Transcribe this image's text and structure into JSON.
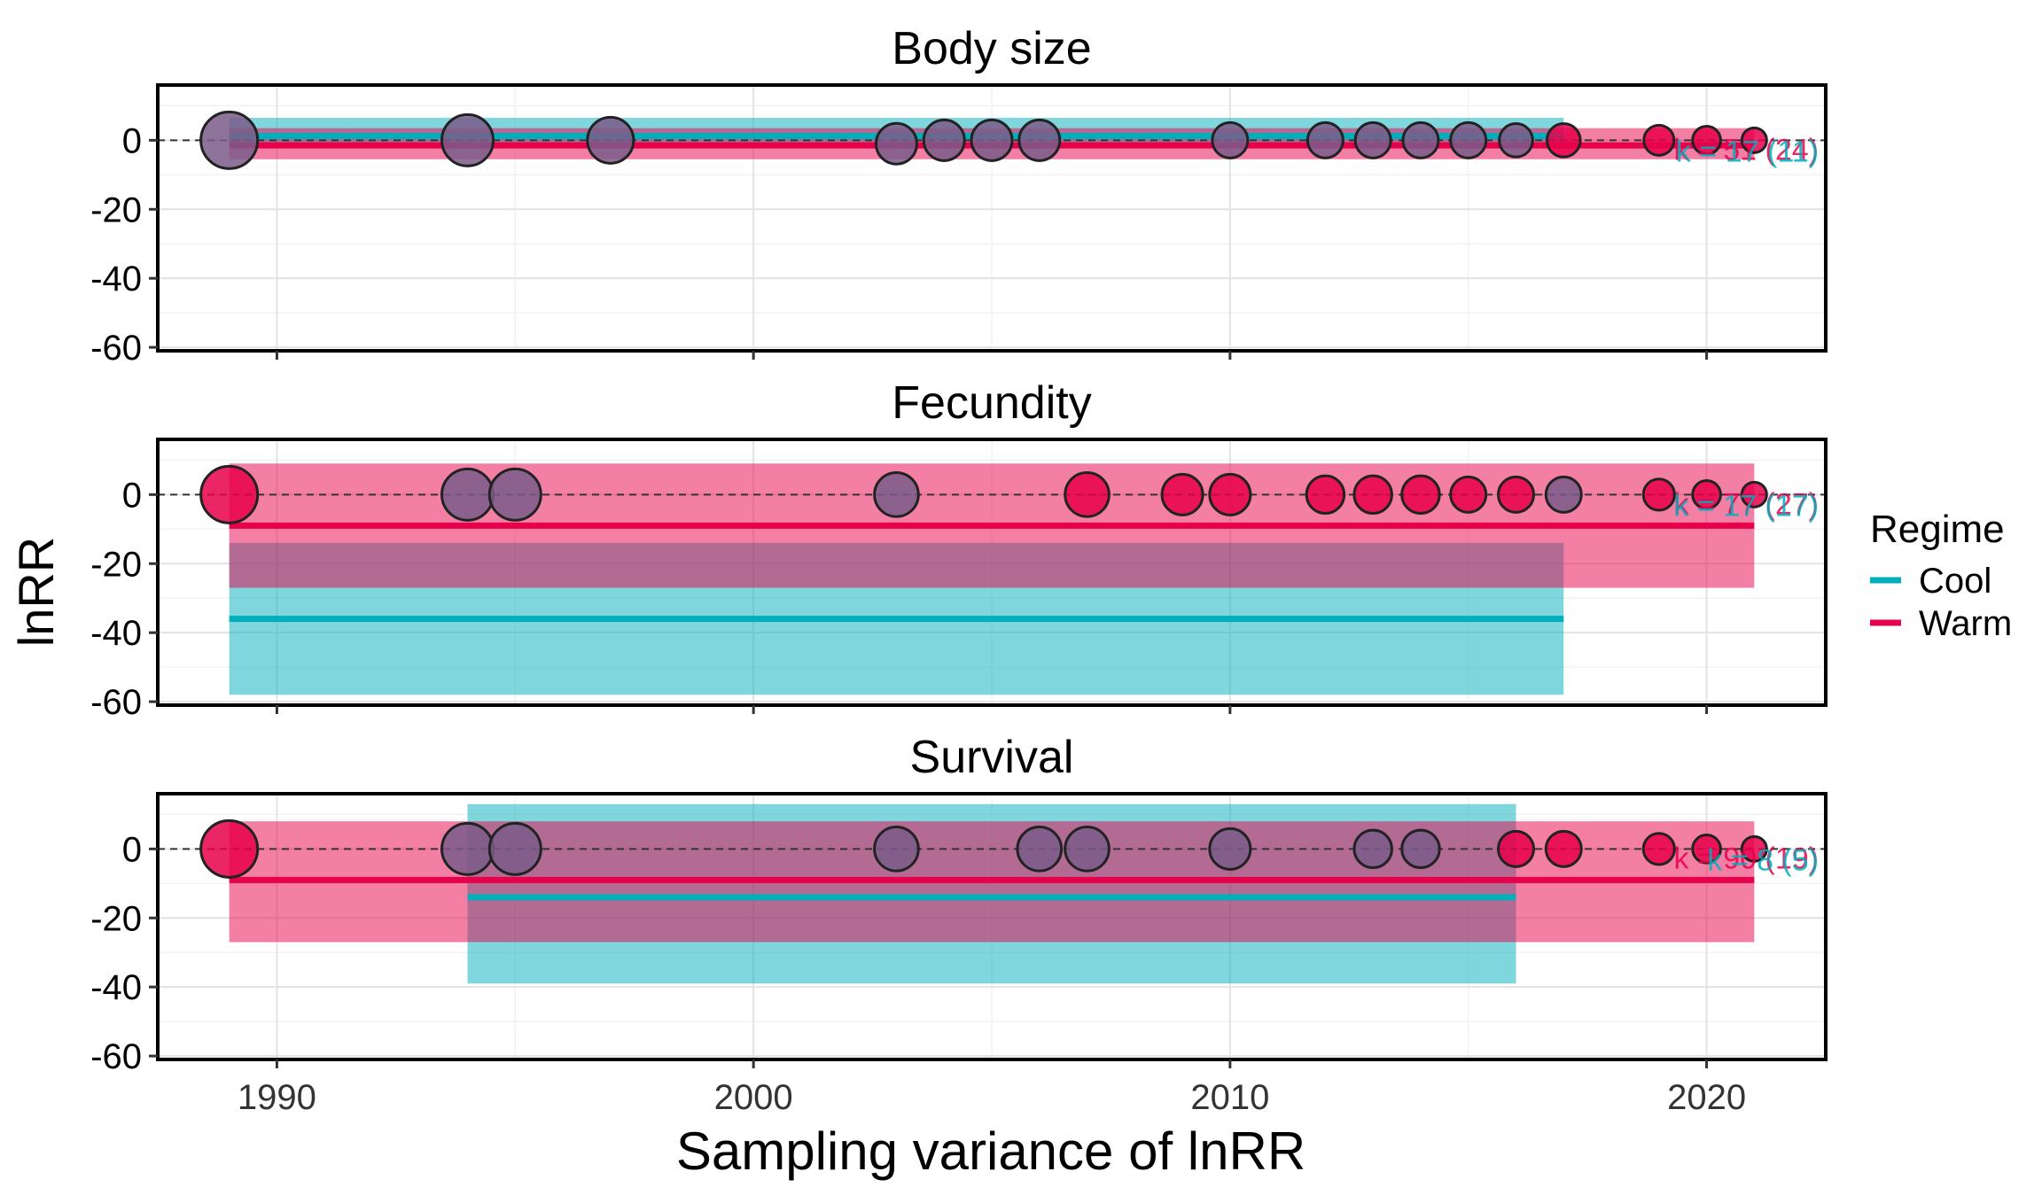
{
  "figure": {
    "xlabel": "Sampling variance of lnRR",
    "ylabel": "lnRR"
  },
  "legend": {
    "title": "Regime",
    "items": [
      {
        "label": "Cool",
        "color": "#00AFBB"
      },
      {
        "label": "Warm",
        "color": "#E7004C"
      }
    ]
  },
  "colors": {
    "cool": "#00AFBB",
    "warm": "#E7004C",
    "point_overlap": "#7A5C8A"
  },
  "chart_data": [
    {
      "type": "scatter",
      "title": "Body size",
      "xlim": [
        1987.5,
        2022.5
      ],
      "ylim": [
        -61,
        16
      ],
      "x_ticks": [
        1990,
        2000,
        2010,
        2020
      ],
      "y_ticks": [
        0,
        -20,
        -40,
        -60
      ],
      "show_x_tick_labels": false,
      "series": [
        {
          "name": "Cool",
          "fit": {
            "x": [
              1989,
              2017
            ],
            "estimate": 1.2,
            "ci": [
              -1.5,
              6.5
            ]
          }
        },
        {
          "name": "Warm",
          "fit": {
            "x": [
              1989,
              2021
            ],
            "estimate": -1.5,
            "ci": [
              -5.5,
              3.5
            ]
          }
        }
      ],
      "points": [
        {
          "x": 1989,
          "y": 0,
          "size": 4,
          "regime": "overlap"
        },
        {
          "x": 1994,
          "y": 0,
          "size": 3.5,
          "regime": "overlap"
        },
        {
          "x": 1997,
          "y": 0,
          "size": 3,
          "regime": "overlap"
        },
        {
          "x": 2003,
          "y": -1,
          "size": 2.5,
          "regime": "overlap"
        },
        {
          "x": 2004,
          "y": 0,
          "size": 2.5,
          "regime": "overlap"
        },
        {
          "x": 2005,
          "y": 0,
          "size": 2.5,
          "regime": "overlap"
        },
        {
          "x": 2006,
          "y": 0,
          "size": 2.5,
          "regime": "overlap"
        },
        {
          "x": 2010,
          "y": 0,
          "size": 2,
          "regime": "overlap"
        },
        {
          "x": 2012,
          "y": 0,
          "size": 2,
          "regime": "overlap"
        },
        {
          "x": 2013,
          "y": 0,
          "size": 2,
          "regime": "overlap"
        },
        {
          "x": 2014,
          "y": 0,
          "size": 2,
          "regime": "overlap"
        },
        {
          "x": 2015,
          "y": 0,
          "size": 2,
          "regime": "overlap"
        },
        {
          "x": 2016,
          "y": 0,
          "size": 1.8,
          "regime": "overlap"
        },
        {
          "x": 2017,
          "y": 0,
          "size": 1.8,
          "regime": "warm"
        },
        {
          "x": 2019,
          "y": 0,
          "size": 1.5,
          "regime": "warm"
        },
        {
          "x": 2020,
          "y": 0,
          "size": 1.3,
          "regime": "warm"
        },
        {
          "x": 2021,
          "y": 0,
          "size": 1,
          "regime": "warm"
        }
      ],
      "annotations": [
        {
          "text": "k = 51 (24)",
          "color": "#E7004C"
        },
        {
          "text": "k = 17 (11)",
          "color": "#00AFBB"
        }
      ]
    },
    {
      "type": "scatter",
      "title": "Fecundity",
      "xlim": [
        1987.5,
        2022.5
      ],
      "ylim": [
        -61,
        16
      ],
      "x_ticks": [
        1990,
        2000,
        2010,
        2020
      ],
      "y_ticks": [
        0,
        -20,
        -40,
        -60
      ],
      "show_x_tick_labels": false,
      "series": [
        {
          "name": "Cool",
          "fit": {
            "x": [
              1989,
              2017
            ],
            "estimate": -36,
            "ci": [
              -58,
              -14
            ]
          }
        },
        {
          "name": "Warm",
          "fit": {
            "x": [
              1989,
              2021
            ],
            "estimate": -9,
            "ci": [
              -27,
              9
            ]
          }
        }
      ],
      "points": [
        {
          "x": 1989,
          "y": 0,
          "size": 4,
          "regime": "warm"
        },
        {
          "x": 1994,
          "y": 0,
          "size": 3.5,
          "regime": "overlap"
        },
        {
          "x": 1995,
          "y": 0,
          "size": 3.5,
          "regime": "overlap"
        },
        {
          "x": 2003,
          "y": 0,
          "size": 2.8,
          "regime": "overlap"
        },
        {
          "x": 2007,
          "y": 0,
          "size": 2.8,
          "regime": "warm"
        },
        {
          "x": 2009,
          "y": 0,
          "size": 2.5,
          "regime": "warm"
        },
        {
          "x": 2010,
          "y": 0,
          "size": 2.5,
          "regime": "warm"
        },
        {
          "x": 2012,
          "y": 0,
          "size": 2.2,
          "regime": "warm"
        },
        {
          "x": 2013,
          "y": 0,
          "size": 2.2,
          "regime": "warm"
        },
        {
          "x": 2014,
          "y": 0,
          "size": 2.2,
          "regime": "warm"
        },
        {
          "x": 2015,
          "y": 0,
          "size": 2,
          "regime": "warm"
        },
        {
          "x": 2016,
          "y": 0,
          "size": 2,
          "regime": "warm"
        },
        {
          "x": 2017,
          "y": 0,
          "size": 2,
          "regime": "overlap"
        },
        {
          "x": 2019,
          "y": 0,
          "size": 1.6,
          "regime": "warm"
        },
        {
          "x": 2020,
          "y": 0,
          "size": 1.3,
          "regime": "warm"
        },
        {
          "x": 2021,
          "y": 0,
          "size": 1,
          "regime": "warm"
        }
      ],
      "annotations": [
        {
          "text": "k = 77 (27)",
          "color": "#E7004C"
        },
        {
          "text": "k = 17 (17)",
          "color": "#00AFBB"
        }
      ]
    },
    {
      "type": "scatter",
      "title": "Survival",
      "xlim": [
        1987.5,
        2022.5
      ],
      "ylim": [
        -61,
        16
      ],
      "x_ticks": [
        1990,
        2000,
        2010,
        2020
      ],
      "y_ticks": [
        0,
        -20,
        -40,
        -60
      ],
      "show_x_tick_labels": true,
      "x_tick_labels": [
        "1990",
        "2000",
        "2010",
        "2020"
      ],
      "series": [
        {
          "name": "Cool",
          "fit": {
            "x": [
              1994,
              2016
            ],
            "estimate": -14,
            "ci": [
              -39,
              13
            ]
          }
        },
        {
          "name": "Warm",
          "fit": {
            "x": [
              1989,
              2021
            ],
            "estimate": -9,
            "ci": [
              -27,
              8
            ]
          }
        }
      ],
      "points": [
        {
          "x": 1989,
          "y": 0,
          "size": 4,
          "regime": "warm"
        },
        {
          "x": 1994,
          "y": 0,
          "size": 3.5,
          "regime": "overlap"
        },
        {
          "x": 1995,
          "y": 0,
          "size": 3.5,
          "regime": "overlap"
        },
        {
          "x": 2003,
          "y": 0,
          "size": 2.8,
          "regime": "overlap"
        },
        {
          "x": 2006,
          "y": 0,
          "size": 2.8,
          "regime": "overlap"
        },
        {
          "x": 2007,
          "y": 0,
          "size": 2.8,
          "regime": "overlap"
        },
        {
          "x": 2010,
          "y": 0,
          "size": 2.5,
          "regime": "overlap"
        },
        {
          "x": 2013,
          "y": 0,
          "size": 2.2,
          "regime": "overlap"
        },
        {
          "x": 2014,
          "y": 0,
          "size": 2.2,
          "regime": "overlap"
        },
        {
          "x": 2016,
          "y": 0,
          "size": 2,
          "regime": "warm"
        },
        {
          "x": 2017,
          "y": 0,
          "size": 2,
          "regime": "warm"
        },
        {
          "x": 2019,
          "y": 0,
          "size": 1.6,
          "regime": "warm"
        },
        {
          "x": 2020,
          "y": 0,
          "size": 1.3,
          "regime": "warm"
        },
        {
          "x": 2021,
          "y": 0,
          "size": 1,
          "regime": "warm"
        }
      ],
      "annotations": [
        {
          "text": "k = 90 (19)",
          "color": "#E7004C"
        },
        {
          "text": "k = 8 (5)",
          "color": "#00AFBB"
        }
      ]
    }
  ]
}
